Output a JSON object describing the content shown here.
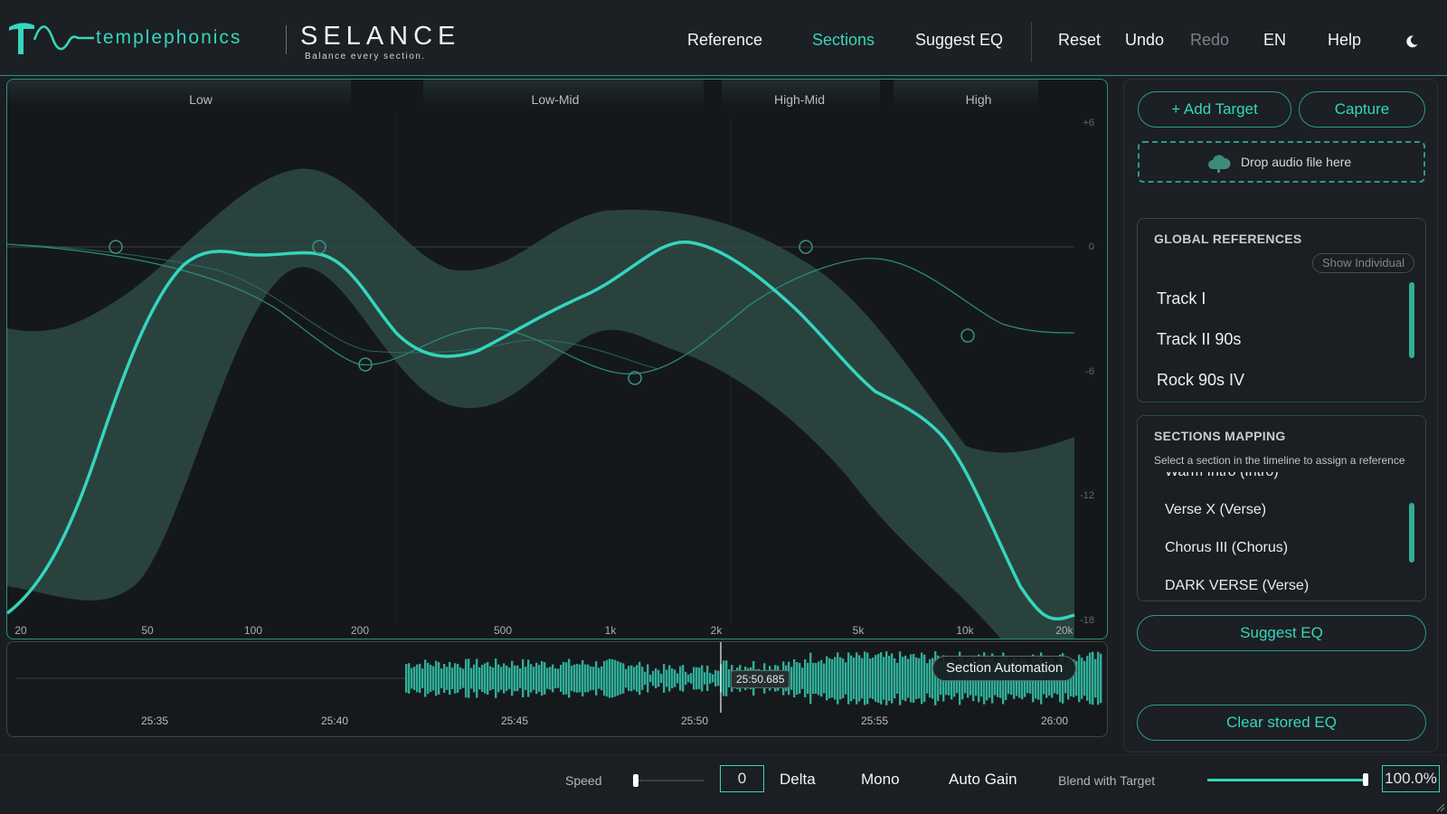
{
  "brand": {
    "company": "templephonics",
    "product": "SELANCE",
    "tagline": "Balance every section."
  },
  "nav": {
    "reference": "Reference",
    "sections": "Sections",
    "suggest_eq": "Suggest EQ",
    "reset": "Reset",
    "undo": "Undo",
    "redo": "Redo",
    "language": "EN",
    "help": "Help",
    "theme_icon": "moon-icon",
    "active_tab": "Sections"
  },
  "eq": {
    "bands": [
      "Low",
      "Low-Mid",
      "High-Mid",
      "High"
    ],
    "freq_ticks": [
      "20",
      "50",
      "100",
      "200",
      "500",
      "1k",
      "2k",
      "5k",
      "10k",
      "20k"
    ],
    "db_ticks": [
      "+6",
      "0",
      "-6",
      "-12",
      "-18"
    ]
  },
  "timeline": {
    "ticks": [
      "25:35",
      "25:40",
      "25:45",
      "25:50",
      "25:55",
      "26:00"
    ],
    "playhead": "25:50.685",
    "section_automation": "Section Automation"
  },
  "sidebar": {
    "add_target": "+ Add Target",
    "capture": "Capture",
    "drop_text": "Drop audio file here",
    "drop_icon": "cloud-upload-icon",
    "global_refs": {
      "title": "GLOBAL REFERENCES",
      "show_individual": "Show Individual",
      "items": [
        "Track I",
        "Track II 90s",
        "Rock 90s IV"
      ]
    },
    "sections_mapping": {
      "title": "SECTIONS MAPPING",
      "subtitle": "Select a section in the timeline to assign a reference",
      "items": [
        "Warm Intro (Intro)",
        "Verse X (Verse)",
        "Chorus III (Chorus)",
        "DARK VERSE (Verse)"
      ]
    },
    "suggest_eq": "Suggest EQ",
    "clear_eq": "Clear stored EQ"
  },
  "bottom": {
    "speed_label": "Speed",
    "speed_value": "0",
    "delta": "Delta",
    "mono": "Mono",
    "auto_gain": "Auto Gain",
    "blend_label": "Blend with Target",
    "blend_value": "100.0%",
    "blend_fraction": 1.0
  },
  "colors": {
    "accent": "#34d6bd",
    "band_fill": "#2e4a44",
    "panel_border": "#2a8f7e",
    "background": "#1a1d21"
  }
}
